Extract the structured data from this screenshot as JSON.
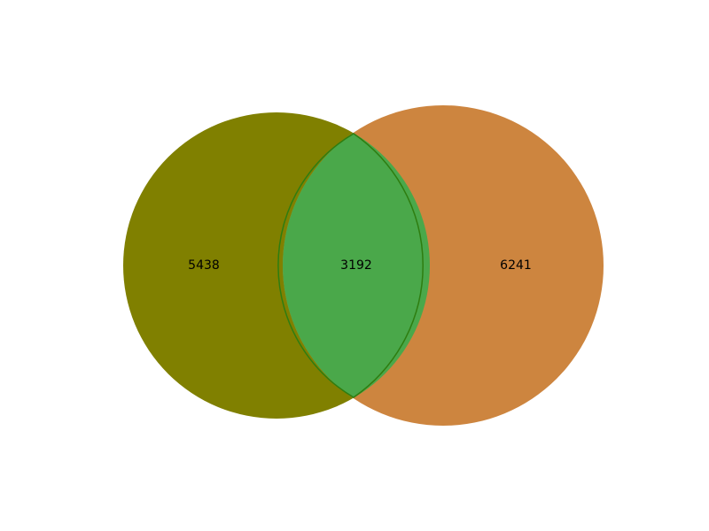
{
  "diagram": {
    "type": "venn2",
    "sets": [
      {
        "key": "left",
        "color": "#808000"
      },
      {
        "key": "right",
        "color": "#cd853f"
      }
    ],
    "intersection": {
      "color": "#4aa84a",
      "stroke": "#2e7d10"
    },
    "regions": {
      "left_only": "5438",
      "intersection": "3192",
      "right_only": "6241"
    }
  }
}
